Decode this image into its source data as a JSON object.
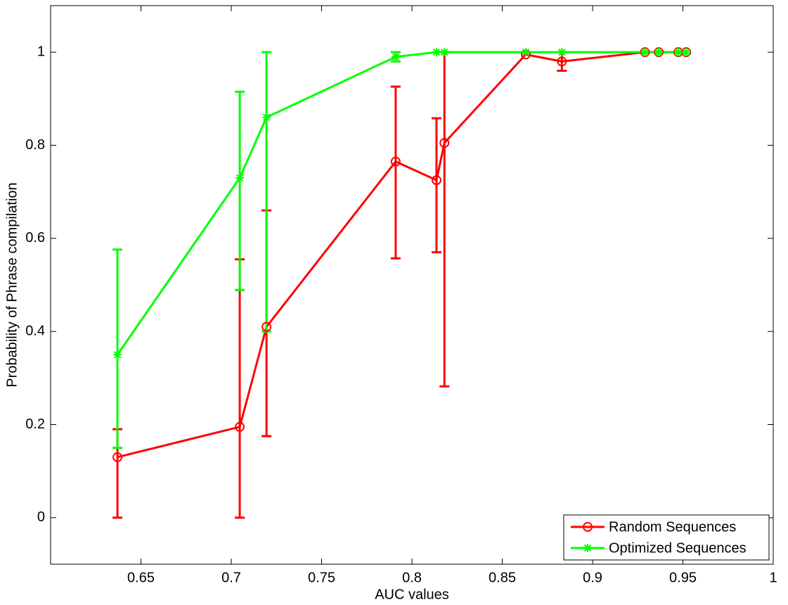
{
  "chart_data": {
    "type": "line",
    "x_label": "AUC values",
    "y_label": "Probability of Phrase compilation",
    "x": [
      0.637,
      0.7047,
      0.7195,
      0.791,
      0.8136,
      0.818,
      0.863,
      0.883,
      0.929,
      0.9366,
      0.9475,
      0.9518
    ],
    "series": [
      {
        "name": "Random Sequences",
        "color": "#ff0000",
        "marker": "circle",
        "values": [
          0.13,
          0.195,
          0.41,
          0.765,
          0.725,
          0.805,
          0.995,
          0.98,
          1,
          1,
          1,
          1
        ],
        "lower": [
          0,
          0,
          0.175,
          0.557,
          0.57,
          0.282,
          null,
          0.96,
          null,
          null,
          null,
          null
        ],
        "upper": [
          0.19,
          0.555,
          0.66,
          0.926,
          0.858,
          1,
          null,
          1,
          null,
          null,
          null,
          null
        ]
      },
      {
        "name": "Optimized Sequences",
        "color": "#00ff00",
        "marker": "star",
        "values": [
          0.35,
          0.73,
          0.86,
          0.99,
          1,
          1,
          1,
          1,
          1,
          1,
          1,
          1
        ],
        "lower": [
          0.15,
          0.489,
          0.4,
          0.98,
          null,
          null,
          null,
          null,
          null,
          null,
          null,
          null
        ],
        "upper": [
          0.576,
          0.915,
          1,
          1,
          null,
          null,
          null,
          null,
          null,
          null,
          null,
          null
        ]
      }
    ],
    "xlim": [
      0.6,
      1
    ],
    "xticks": [
      0.65,
      0.7,
      0.75,
      0.8,
      0.85,
      0.9,
      0.95,
      1
    ],
    "ylim": [
      -0.1,
      1.1
    ],
    "yticks": [
      0,
      0.2,
      0.4,
      0.6,
      0.8,
      1
    ],
    "legend": "lower right"
  }
}
